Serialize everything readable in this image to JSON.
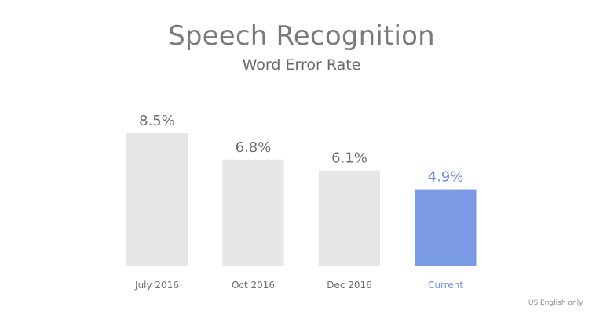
{
  "chart_data": {
    "type": "bar",
    "title": "Speech Recognition",
    "subtitle": "Word Error Rate",
    "categories": [
      "July 2016",
      "Oct 2016",
      "Dec 2016",
      "Current"
    ],
    "values": [
      8.5,
      6.8,
      6.1,
      4.9
    ],
    "value_labels": [
      "8.5%",
      "6.8%",
      "6.1%",
      "4.9%"
    ],
    "ylim": [
      0,
      8.5
    ],
    "grid": false,
    "legend": "none",
    "colors": {
      "default_bar": "#e6e6e6",
      "highlight_bar": "#7b9ae4",
      "default_text": "#6f6f6f",
      "highlight_text": "#6f8ee0"
    },
    "highlight_index": 3
  },
  "footnote": "US English only."
}
